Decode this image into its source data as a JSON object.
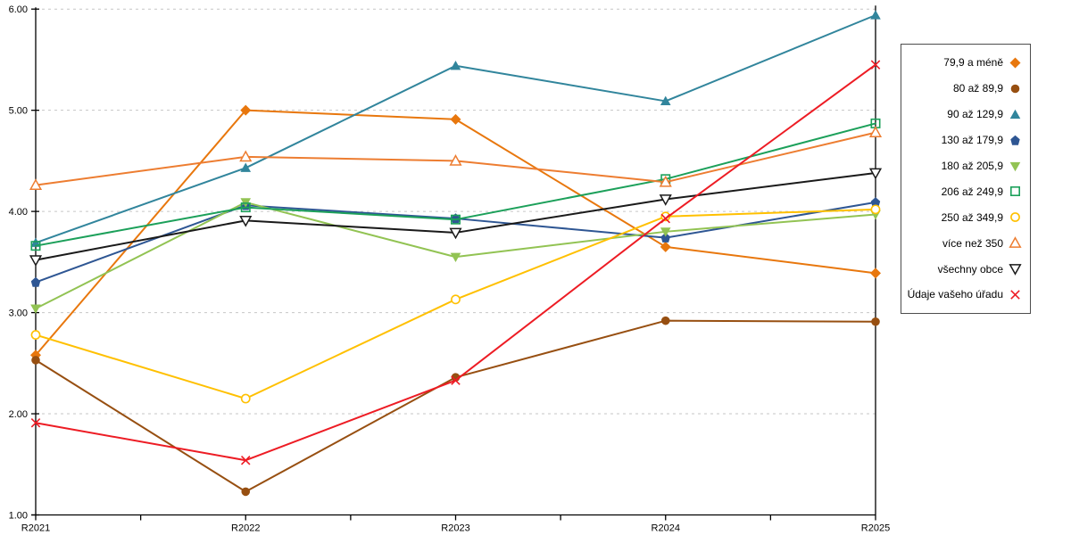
{
  "chart_data": {
    "type": "line",
    "title": "",
    "xlabel": "",
    "ylabel": "",
    "categories": [
      "R2021",
      "R2022",
      "R2023",
      "R2024",
      "R2025"
    ],
    "ylim": [
      1,
      6
    ],
    "ytick_labels": [
      "1.00",
      "2.00",
      "3.00",
      "4.00",
      "5.00",
      "6.00"
    ],
    "grid": "horizontal-dashed",
    "legend_position": "right",
    "series": [
      {
        "name": "79,9 a méně",
        "color": "#E8770D",
        "marker": "diamond",
        "values": [
          2.58,
          5.0,
          4.91,
          3.65,
          3.39
        ]
      },
      {
        "name": "80 až 89,9",
        "color": "#974F11",
        "marker": "circle",
        "values": [
          2.53,
          1.23,
          2.36,
          2.92,
          2.91
        ]
      },
      {
        "name": "90 až 129,9",
        "color": "#31859C",
        "marker": "triangle-up",
        "values": [
          3.69,
          4.43,
          5.44,
          5.09,
          5.94
        ]
      },
      {
        "name": "130 až 179,9",
        "color": "#2E5693",
        "marker": "pentagon",
        "values": [
          3.3,
          4.06,
          3.93,
          3.74,
          4.09
        ]
      },
      {
        "name": "180 až 205,9",
        "color": "#92C353",
        "marker": "triangle-down",
        "values": [
          3.04,
          4.09,
          3.55,
          3.8,
          3.97
        ]
      },
      {
        "name": "206 až 249,9",
        "color": "#1CA05A",
        "marker": "square-open",
        "values": [
          3.66,
          4.04,
          3.92,
          4.32,
          4.87
        ]
      },
      {
        "name": "250 až 349,9",
        "color": "#FFC000",
        "marker": "circle-open",
        "values": [
          2.78,
          2.15,
          3.13,
          3.95,
          4.02
        ]
      },
      {
        "name": "více než 350",
        "color": "#ED7D31",
        "marker": "triangle-up-open",
        "values": [
          4.26,
          4.54,
          4.5,
          4.29,
          4.78
        ]
      },
      {
        "name": "všechny obce",
        "color": "#1A1A1A",
        "marker": "triangle-down-open",
        "values": [
          3.52,
          3.91,
          3.79,
          4.12,
          4.38
        ]
      },
      {
        "name": "Údaje vašeho úřadu",
        "color": "#ED1C24",
        "marker": "x",
        "values": [
          1.91,
          1.54,
          2.33,
          3.93,
          5.45
        ]
      }
    ]
  },
  "colors": {
    "grid": "#C6C6C6",
    "axis": "#000000",
    "tick": "#000000",
    "label": "#000000",
    "legend_border": "#4D4D4D",
    "background": "#FFFFFF"
  },
  "layout_text": {}
}
